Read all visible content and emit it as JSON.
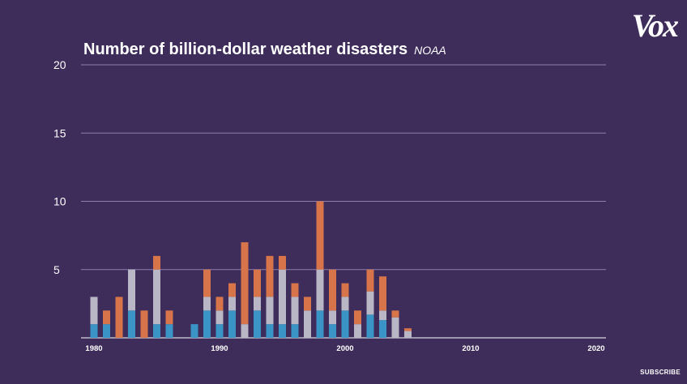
{
  "header": {
    "title": "Number of billion-dollar weather disasters",
    "source": "NOAA"
  },
  "brand": {
    "logo_text": "Vox",
    "subscribe_label": "SUBSCRIBE"
  },
  "colors": {
    "background": "#3e2d5a",
    "gridline": "#8e7fb0",
    "blue": "#3a95c6",
    "gray": "#b9b6c5",
    "orange": "#d8744a",
    "dark_red": "#7a2a20"
  },
  "chart_data": {
    "type": "bar",
    "stacked": true,
    "title": "Number of billion-dollar weather disasters",
    "source": "NOAA",
    "xlim": [
      1979,
      2021
    ],
    "ylim": [
      0,
      20
    ],
    "yticks": [
      5,
      10,
      15,
      20
    ],
    "xticks": [
      1980,
      1990,
      2000,
      2010,
      2020
    ],
    "grid": true,
    "categories": [
      1980,
      1981,
      1982,
      1983,
      1984,
      1985,
      1986,
      1987,
      1988,
      1989,
      1990,
      1991,
      1992,
      1993,
      1994,
      1995,
      1996,
      1997,
      1998,
      1999,
      2000,
      2001,
      2002,
      2003,
      2004,
      2005
    ],
    "series": [
      {
        "color": "#3a95c6",
        "values": [
          1,
          1,
          0,
          2,
          0,
          1,
          1,
          0,
          1,
          2,
          1,
          2,
          0,
          2,
          1,
          1,
          1,
          0,
          2,
          1,
          2,
          0,
          1.7,
          1.3,
          0,
          0
        ]
      },
      {
        "color": "#b9b6c5",
        "values": [
          2,
          0,
          0,
          3,
          0,
          4,
          0,
          0,
          0,
          1,
          1,
          1,
          1,
          1,
          2,
          4,
          2,
          2,
          3,
          1,
          1,
          1,
          1.7,
          0.7,
          1.5,
          0.5
        ]
      },
      {
        "color": "#d8744a",
        "values": [
          0,
          1,
          3,
          0,
          2,
          1,
          1,
          0,
          0,
          2,
          1,
          1,
          6,
          2,
          3,
          1,
          1,
          1,
          5,
          3,
          1,
          1,
          1.6,
          2.5,
          0.5,
          0.2
        ]
      },
      {
        "color": "#7a2a20",
        "values": [
          0,
          0,
          0,
          0,
          0,
          0,
          0,
          0,
          0,
          0,
          0,
          0,
          0,
          0,
          0,
          0,
          0,
          0,
          0,
          0,
          0,
          0,
          0,
          0,
          0,
          0
        ]
      }
    ]
  }
}
